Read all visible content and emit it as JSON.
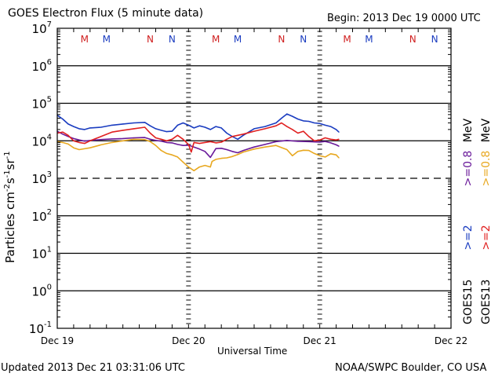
{
  "header": {
    "title": "GOES Electron Flux (5 minute data)",
    "begin": "Begin: 2013 Dec 19 0000 UTC"
  },
  "footer": {
    "updated": "Updated 2013 Dec 21 03:31:06 UTC",
    "credit": "NOAA/SWPC Boulder, CO USA"
  },
  "chart_data": {
    "type": "line",
    "title": "GOES Electron Flux (5 minute data)",
    "xlabel": "Universal Time",
    "ylabel": "Particles cm⁻²s⁻¹sr⁻¹",
    "yscale": "log",
    "ylim": [
      0.1,
      10000000
    ],
    "xlim_hours": [
      0,
      72
    ],
    "x_ticks": [
      "Dec 19",
      "Dec 20",
      "Dec 21",
      "Dec 22"
    ],
    "y_ticks": [
      {
        "base": "10",
        "exp": "7"
      },
      {
        "base": "10",
        "exp": "6"
      },
      {
        "base": "10",
        "exp": "5"
      },
      {
        "base": "10",
        "exp": "4"
      },
      {
        "base": "10",
        "exp": "3"
      },
      {
        "base": "10",
        "exp": "2"
      },
      {
        "base": "10",
        "exp": "1"
      },
      {
        "base": "10",
        "exp": "0"
      },
      {
        "base": "10",
        "exp": "-1"
      }
    ],
    "threshold_line": 1000,
    "grid": true,
    "markers": [
      {
        "label": "M",
        "hour": 5,
        "color": "#d02020"
      },
      {
        "label": "M",
        "hour": 9,
        "color": "#1a3cc0"
      },
      {
        "label": "N",
        "hour": 17,
        "color": "#d02020"
      },
      {
        "label": "N",
        "hour": 21,
        "color": "#1a3cc0"
      },
      {
        "label": "M",
        "hour": 29,
        "color": "#d02020"
      },
      {
        "label": "M",
        "hour": 33,
        "color": "#1a3cc0"
      },
      {
        "label": "N",
        "hour": 41,
        "color": "#d02020"
      },
      {
        "label": "N",
        "hour": 45,
        "color": "#1a3cc0"
      },
      {
        "label": "M",
        "hour": 53,
        "color": "#d02020"
      },
      {
        "label": "M",
        "hour": 57,
        "color": "#1a3cc0"
      },
      {
        "label": "N",
        "hour": 65,
        "color": "#d02020"
      },
      {
        "label": "N",
        "hour": 69,
        "color": "#1a3cc0"
      }
    ],
    "legend": {
      "placement": "right",
      "satellites": [
        {
          "name": "GOES15",
          "entries": [
            {
              "label": ">=2",
              "color": "#1a3cc0"
            },
            {
              "label": ">=0.8",
              "color": "#6a1a9a"
            }
          ]
        },
        {
          "name": "GOES13",
          "entries": [
            {
              "label": ">=2",
              "color": "#e02020"
            },
            {
              "label": ">=0.8",
              "color": "#e8a820"
            }
          ]
        }
      ],
      "unit": "MeV"
    },
    "series": [
      {
        "name": "GOES15 >=0.8 MeV",
        "color": "#6a1a9a",
        "x": [
          0,
          1,
          2,
          3,
          4,
          5,
          6,
          8,
          10,
          12,
          14,
          16,
          17,
          18,
          19,
          20,
          21,
          22,
          23,
          24,
          25,
          26,
          27,
          28,
          29,
          30,
          31,
          32,
          33,
          34,
          36,
          38,
          40,
          42,
          44,
          46,
          48,
          49,
          50,
          51,
          51.5
        ],
        "y": [
          18000,
          15000,
          13000,
          11500,
          10500,
          9800,
          10200,
          10800,
          11200,
          11500,
          12000,
          12200,
          11000,
          10200,
          9800,
          9000,
          8800,
          8000,
          7500,
          7600,
          6800,
          6000,
          5200,
          3600,
          6200,
          6300,
          5800,
          5200,
          4800,
          5500,
          6800,
          8000,
          9500,
          10200,
          9700,
          9500,
          9200,
          9600,
          8800,
          7800,
          7200
        ]
      },
      {
        "name": "GOES13 >=0.8 MeV",
        "color": "#e8a820",
        "x": [
          0,
          1,
          2,
          3,
          4,
          6,
          8,
          10,
          12,
          14,
          16,
          17,
          18,
          19,
          20,
          21,
          22,
          23,
          24,
          25,
          26,
          27,
          28,
          28.3,
          29,
          30,
          31,
          32,
          33,
          34,
          36,
          38,
          40,
          42,
          43,
          44,
          45,
          46,
          47,
          48,
          49,
          50,
          51,
          51.5
        ],
        "y": [
          9500,
          9000,
          8200,
          6500,
          5800,
          6500,
          7800,
          9000,
          10000,
          11000,
          10800,
          9500,
          7500,
          5500,
          4600,
          4200,
          3700,
          2700,
          2000,
          1600,
          2000,
          2200,
          2000,
          2800,
          3200,
          3400,
          3500,
          3800,
          4300,
          5000,
          6000,
          6800,
          7500,
          5800,
          4000,
          5200,
          5600,
          5500,
          4600,
          4000,
          3700,
          4500,
          4200,
          3500
        ]
      },
      {
        "name": "GOES15 >=2 MeV",
        "color": "#1a3cc0",
        "x": [
          0,
          1,
          2,
          3,
          4,
          5,
          6,
          8,
          10,
          12,
          14,
          16,
          17,
          18,
          19,
          20,
          21,
          22,
          23,
          24,
          25,
          26,
          27,
          28,
          29,
          30,
          31,
          32,
          33,
          34,
          35,
          36,
          38,
          40,
          41,
          42,
          43,
          44,
          45,
          46,
          47,
          48,
          49,
          50,
          51,
          51.5
        ],
        "y": [
          48000,
          38000,
          28000,
          24000,
          21000,
          20000,
          22000,
          23000,
          26000,
          28000,
          30000,
          31000,
          25000,
          21000,
          19000,
          17500,
          18000,
          26000,
          30000,
          26000,
          22000,
          25000,
          23000,
          20000,
          24000,
          22000,
          16000,
          13000,
          11000,
          14000,
          17000,
          21000,
          24000,
          30000,
          40000,
          52000,
          45000,
          38000,
          34000,
          33000,
          30000,
          29000,
          26000,
          24000,
          20000,
          17000
        ]
      },
      {
        "name": "GOES13 >=2 MeV",
        "color": "#e02020",
        "x": [
          0,
          1,
          2,
          3,
          4,
          5,
          6,
          8,
          10,
          12,
          14,
          16,
          17,
          18,
          19,
          20,
          21,
          22,
          23,
          24,
          24.5,
          25,
          26,
          27,
          28,
          29,
          30,
          31,
          32,
          33,
          34,
          36,
          38,
          40,
          41,
          42,
          43,
          44,
          45,
          46,
          47,
          48,
          49,
          50,
          51,
          51.5
        ],
        "y": [
          16000,
          17000,
          14000,
          10000,
          9000,
          8500,
          10000,
          13000,
          17000,
          19000,
          21000,
          23000,
          16000,
          12000,
          11000,
          10000,
          11000,
          14000,
          11000,
          8000,
          5000,
          9000,
          8500,
          9000,
          9500,
          8800,
          9200,
          11000,
          13000,
          14000,
          15000,
          18000,
          21000,
          25000,
          30000,
          24000,
          20000,
          16000,
          18000,
          13000,
          10000,
          10500,
          12000,
          11000,
          10500,
          11000
        ]
      }
    ]
  }
}
